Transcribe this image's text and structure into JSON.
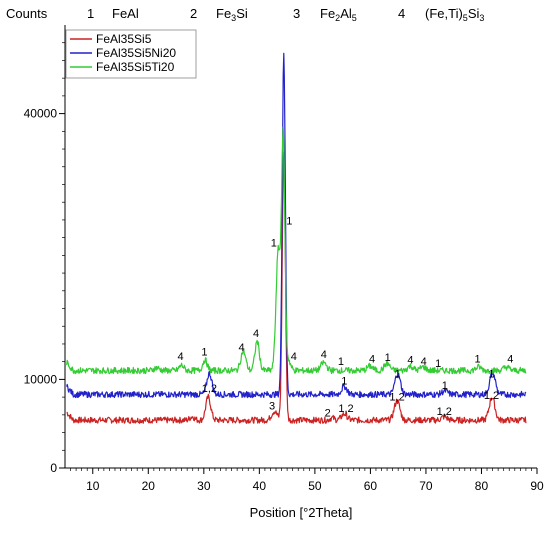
{
  "chart_data": {
    "type": "line",
    "ylabel": "Counts",
    "xlabel": "Position [°2Theta]",
    "xlim": [
      5,
      90
    ],
    "ylim": [
      0,
      50000
    ],
    "x_ticks": [
      10,
      20,
      30,
      40,
      50,
      60,
      70,
      80,
      90
    ],
    "y_ticks": [
      0,
      10000,
      40000
    ],
    "grid": false,
    "legend": "top-left",
    "phase_key": [
      {
        "num": "1",
        "name": "FeAl"
      },
      {
        "num": "2",
        "name": "Fe3Si"
      },
      {
        "num": "3",
        "name": "Fe2Al5"
      },
      {
        "num": "4",
        "name": "(Fe,Ti)5Si3"
      }
    ],
    "series": [
      {
        "name": "FeAl35Si5",
        "color": "#cc2222",
        "baseline": 5400,
        "peaks": [
          [
            27.9,
            400,
            0.4
          ],
          [
            30.8,
            2600,
            0.45
          ],
          [
            42.7,
            1000,
            0.5
          ],
          [
            44.4,
            30000,
            0.28
          ],
          [
            53.1,
            250,
            0.4
          ],
          [
            55.3,
            700,
            0.5
          ],
          [
            64.8,
            2200,
            0.5
          ],
          [
            73.3,
            400,
            0.5
          ],
          [
            81.9,
            2600,
            0.5
          ]
        ],
        "peak_labels": [
          {
            "x": 31.0,
            "y": 8600,
            "text": "1,2"
          },
          {
            "x": 42.3,
            "y": 6600,
            "text": "3"
          },
          {
            "x": 52.3,
            "y": 5800,
            "text": "2"
          },
          {
            "x": 55.6,
            "y": 6300,
            "text": "1,2"
          },
          {
            "x": 64.8,
            "y": 7600,
            "text": "1,2"
          },
          {
            "x": 73.3,
            "y": 6000,
            "text": "1,2"
          },
          {
            "x": 81.8,
            "y": 7800,
            "text": "1,2"
          }
        ]
      },
      {
        "name": "FeAl35Si5Ni20",
        "color": "#2222cc",
        "baseline": 8300,
        "peaks": [
          [
            31.0,
            2400,
            0.45
          ],
          [
            44.4,
            38500,
            0.28
          ],
          [
            55.3,
            900,
            0.5
          ],
          [
            64.9,
            2300,
            0.5
          ],
          [
            73.4,
            400,
            0.5
          ],
          [
            82.0,
            2500,
            0.5
          ]
        ],
        "peak_labels": [
          {
            "x": 55.3,
            "y": 9400,
            "text": "1"
          },
          {
            "x": 64.9,
            "y": 10200,
            "text": "1"
          },
          {
            "x": 73.4,
            "y": 8900,
            "text": "1"
          },
          {
            "x": 81.8,
            "y": 10200,
            "text": "1"
          }
        ]
      },
      {
        "name": "FeAl35Si5Ti20",
        "color": "#33cc33",
        "baseline": 11000,
        "peaks": [
          [
            21.5,
            300,
            0.5
          ],
          [
            26.0,
            600,
            0.4
          ],
          [
            30.2,
            1200,
            0.4
          ],
          [
            37.1,
            2200,
            0.45
          ],
          [
            39.6,
            3300,
            0.4
          ],
          [
            43.4,
            13500,
            0.4
          ],
          [
            44.3,
            26000,
            0.3
          ],
          [
            45.2,
            1200,
            0.4
          ],
          [
            51.6,
            900,
            0.5
          ],
          [
            59.9,
            500,
            0.5
          ],
          [
            63.0,
            800,
            0.5
          ],
          [
            67.2,
            500,
            0.5
          ],
          [
            69.5,
            400,
            0.5
          ],
          [
            79.5,
            400,
            0.5
          ],
          [
            84.5,
            400,
            0.5
          ]
        ],
        "peak_labels": [
          {
            "x": 25.8,
            "y": 12200,
            "text": "4"
          },
          {
            "x": 30.1,
            "y": 12700,
            "text": "1"
          },
          {
            "x": 36.8,
            "y": 13200,
            "text": "4"
          },
          {
            "x": 39.4,
            "y": 14800,
            "text": "4"
          },
          {
            "x": 42.6,
            "y": 25000,
            "text": "1"
          },
          {
            "x": 45.4,
            "y": 27500,
            "text": "1"
          },
          {
            "x": 46.2,
            "y": 12200,
            "text": "4"
          },
          {
            "x": 51.6,
            "y": 12400,
            "text": "4"
          },
          {
            "x": 54.7,
            "y": 11600,
            "text": "1"
          },
          {
            "x": 60.3,
            "y": 11900,
            "text": "4"
          },
          {
            "x": 63.1,
            "y": 12100,
            "text": "1"
          },
          {
            "x": 67.2,
            "y": 11800,
            "text": "4"
          },
          {
            "x": 69.6,
            "y": 11600,
            "text": "4"
          },
          {
            "x": 72.2,
            "y": 11400,
            "text": "1"
          },
          {
            "x": 79.3,
            "y": 11900,
            "text": "1"
          },
          {
            "x": 85.2,
            "y": 11900,
            "text": "4"
          }
        ]
      }
    ]
  }
}
